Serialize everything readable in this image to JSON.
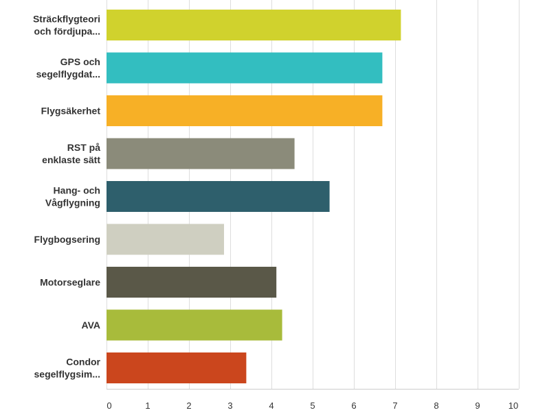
{
  "chart_data": {
    "type": "bar",
    "orientation": "horizontal",
    "categories": [
      [
        "Sträckflygteori",
        "och fördjupa..."
      ],
      [
        "GPS och",
        "segelflygdat..."
      ],
      [
        "Flygsäkerhet"
      ],
      [
        "RST på",
        "enklaste sätt"
      ],
      [
        "Hang- och",
        "Vågflygning"
      ],
      [
        "Flygbogsering"
      ],
      [
        "Motorseglare"
      ],
      [
        "AVA"
      ],
      [
        "Condor",
        "segelflygsim..."
      ]
    ],
    "values": [
      7.14,
      6.69,
      6.69,
      4.56,
      5.41,
      2.85,
      4.12,
      4.26,
      3.39
    ],
    "colors": [
      "#d0d22d",
      "#33bec0",
      "#f7b026",
      "#8b8b7a",
      "#2e5f6c",
      "#cfcfc1",
      "#5a5848",
      "#a8bb3b",
      "#cb461d"
    ],
    "xlim": [
      0,
      10
    ],
    "ticks": [
      "0",
      "1",
      "2",
      "3",
      "4",
      "5",
      "6",
      "7",
      "8",
      "9",
      "10"
    ],
    "grid": true,
    "title": "",
    "xlabel": "",
    "ylabel": ""
  }
}
